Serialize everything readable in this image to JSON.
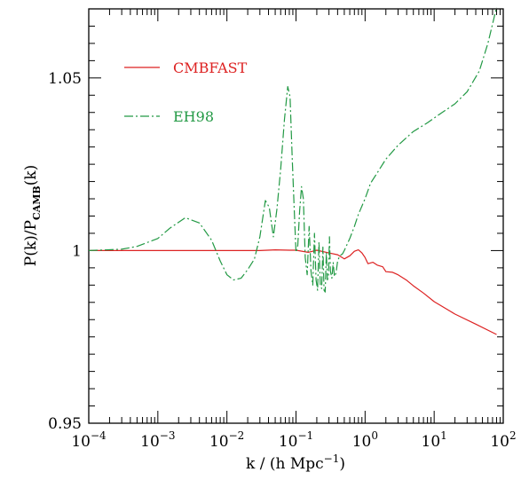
{
  "chart_data": {
    "type": "line",
    "xscale": "log",
    "xlim": [
      0.0001,
      100
    ],
    "ylim": [
      0.95,
      1.07
    ],
    "xlabel": {
      "pre": "k / (h Mpc",
      "sup": "−1",
      "post": ")"
    },
    "ylabel": {
      "pre": "P(k)/P",
      "sub": "CAMB",
      "post": "(k)"
    },
    "xticks": [
      {
        "base": "10",
        "exp": "−4",
        "value": 0.0001
      },
      {
        "base": "10",
        "exp": "−3",
        "value": 0.001
      },
      {
        "base": "10",
        "exp": "−2",
        "value": 0.01
      },
      {
        "base": "10",
        "exp": "−1",
        "value": 0.1
      },
      {
        "base": "10",
        "exp": "0",
        "value": 1
      },
      {
        "base": "10",
        "exp": "1",
        "value": 10
      },
      {
        "base": "10",
        "exp": "2",
        "value": 100
      }
    ],
    "yticks": [
      {
        "label": "0.95",
        "value": 0.95
      },
      {
        "label": "1",
        "value": 1.0
      },
      {
        "label": "1.05",
        "value": 1.05
      }
    ],
    "legend_position": "top-left",
    "series": [
      {
        "name": "CMBFAST",
        "color": "#dd2222",
        "dash": "solid",
        "x": [
          0.0001,
          0.001,
          0.01,
          0.03,
          0.05,
          0.08,
          0.1,
          0.15,
          0.2,
          0.3,
          0.4,
          0.5,
          0.6,
          0.7,
          0.8,
          0.9,
          1.0,
          1.1,
          1.3,
          1.5,
          1.8,
          2.0,
          2.5,
          3.0,
          4.0,
          5.0,
          7.0,
          10,
          20,
          40,
          80
        ],
        "y": [
          1.0,
          1.0,
          1.0,
          1.0,
          1.0002,
          1.0001,
          1.0001,
          0.9995,
          1.0001,
          0.9993,
          0.9988,
          0.9976,
          0.9985,
          0.9998,
          1.0002,
          0.9993,
          0.998,
          0.9962,
          0.9966,
          0.9958,
          0.9953,
          0.9939,
          0.9937,
          0.993,
          0.9914,
          0.9898,
          0.9877,
          0.9852,
          0.9816,
          0.9787,
          0.9757
        ]
      },
      {
        "name": "EH98",
        "color": "#229944",
        "dash": "dash-dot",
        "x": [
          0.0001,
          0.0003,
          0.0005,
          0.001,
          0.0015,
          0.0025,
          0.004,
          0.006,
          0.008,
          0.01,
          0.0125,
          0.016,
          0.02,
          0.025,
          0.03,
          0.036,
          0.041,
          0.047,
          0.053,
          0.06,
          0.068,
          0.076,
          0.082,
          0.088,
          0.095,
          0.1,
          0.106,
          0.113,
          0.12,
          0.128,
          0.136,
          0.145,
          0.155,
          0.165,
          0.175,
          0.185,
          0.195,
          0.205,
          0.215,
          0.225,
          0.235,
          0.245,
          0.255,
          0.265,
          0.275,
          0.285,
          0.295,
          0.305,
          0.315,
          0.33,
          0.345,
          0.36,
          0.38,
          0.4,
          0.43,
          0.47,
          0.5,
          0.6,
          0.7,
          0.8,
          1.0,
          1.2,
          1.5,
          2.0,
          3.0,
          5.0,
          8.0,
          12,
          20,
          30,
          45,
          60,
          80
        ],
        "y": [
          1.0,
          1.0004,
          1.0012,
          1.0035,
          1.0065,
          1.0095,
          1.008,
          1.003,
          0.997,
          0.993,
          0.9915,
          0.992,
          0.9945,
          0.9975,
          1.004,
          1.0145,
          1.0125,
          1.004,
          1.012,
          1.0235,
          1.038,
          1.0475,
          1.0445,
          1.027,
          1.01,
          0.9995,
          1.0015,
          1.0115,
          1.0185,
          1.015,
          0.998,
          0.993,
          1.007,
          0.994,
          0.99,
          1.005,
          0.9915,
          0.9885,
          1.0025,
          0.99,
          0.989,
          1.001,
          0.9885,
          0.988,
          0.9995,
          0.9915,
          0.9925,
          1.004,
          0.994,
          0.992,
          0.9965,
          0.9925,
          0.9935,
          0.997,
          0.9985,
          0.999,
          1.0,
          1.0035,
          1.007,
          1.0105,
          1.015,
          1.0195,
          1.0225,
          1.0265,
          1.0305,
          1.0345,
          1.037,
          1.0395,
          1.0425,
          1.046,
          1.052,
          1.06,
          1.0705
        ]
      }
    ]
  }
}
